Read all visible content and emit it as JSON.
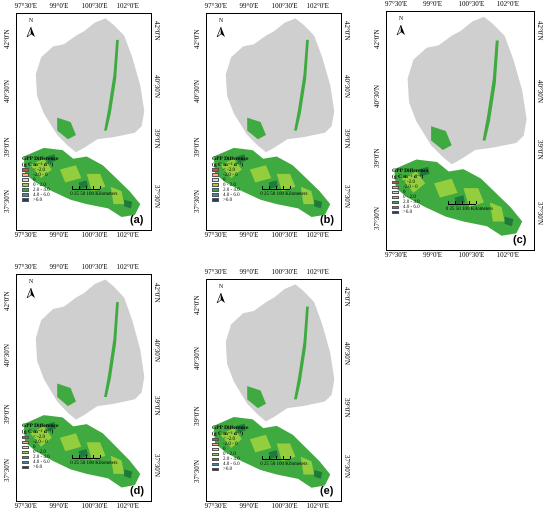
{
  "longitude_ticks": [
    "97°30'E",
    "99°0'E",
    "100°30'E",
    "102°0'E"
  ],
  "latitude_ticks": [
    "42°0'N",
    "40°30'N",
    "39°0'N",
    "37°30'N"
  ],
  "north_label": "N",
  "legend": {
    "title": "GPP Difference",
    "unit": "(g C m⁻² d⁻¹)",
    "classes": [
      {
        "label": "< -2.0",
        "color": "#c0504d"
      },
      {
        "label": "-2.0 - 0",
        "color": "#f4b183"
      },
      {
        "label": "0",
        "color": "#d9d9d9"
      },
      {
        "label": "0 - 2.0",
        "color": "#9bd13d"
      },
      {
        "label": "2.0 - 4.0",
        "color": "#2ea84a"
      },
      {
        "label": "4.0 - 6.0",
        "color": "#3d8aa6"
      },
      {
        "label": ">6.0",
        "color": "#1f3b73"
      }
    ]
  },
  "scale_bar": {
    "labels": "0  25 50     100 Kilometers"
  },
  "panels": [
    {
      "label": "(a)"
    },
    {
      "label": "(b)"
    },
    {
      "label": "(c)"
    },
    {
      "label": "(d)"
    },
    {
      "label": "(e)"
    }
  ],
  "colors": {
    "background_gray": "#cfcfcf",
    "frame": "#000000"
  }
}
